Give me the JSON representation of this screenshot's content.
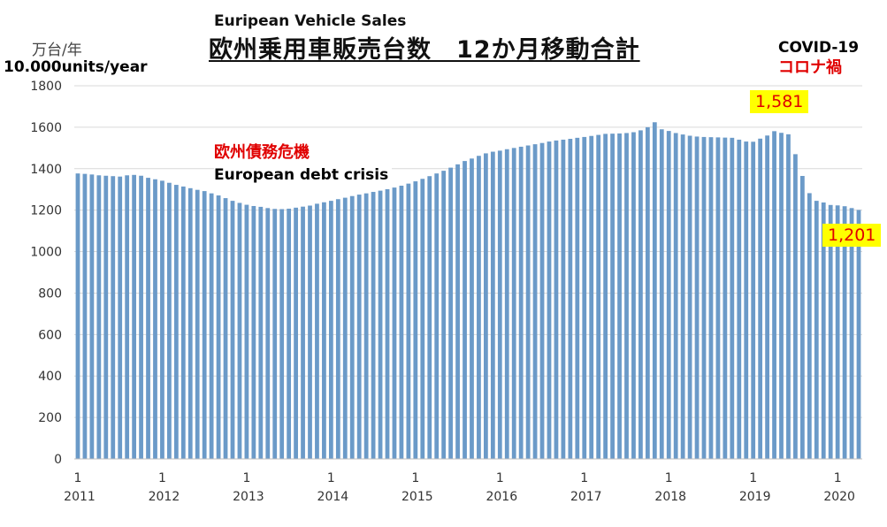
{
  "titles": {
    "english": "Euripean Vehicle Sales",
    "japanese": "欧州乗用車販売台数　12か月移動合計"
  },
  "units": {
    "japanese": "万台/年",
    "english": "10.000units/year"
  },
  "annotations": {
    "covid_en": "COVID-19",
    "covid_jp": "コロナ禍",
    "crisis_jp": "欧州債務危機",
    "crisis_en": "European debt crisis",
    "peak_callout": "1,581",
    "end_callout": "1,201"
  },
  "colors": {
    "bar": "#6b9ac8",
    "gridline": "#d9d9d9",
    "highlight": "#ffff00",
    "annotation_red": "#e00000"
  },
  "chart_data": {
    "type": "bar",
    "ylim": [
      0,
      1800
    ],
    "yticks": [
      "0",
      "200",
      "400",
      "600",
      "800",
      "1000",
      "1200",
      "1400",
      "1600",
      "1800"
    ],
    "grid": true,
    "xtick_months": [
      "1",
      "1",
      "1",
      "1",
      "1",
      "1",
      "1",
      "1",
      "1",
      "1"
    ],
    "xtick_years": [
      "2011",
      "2012",
      "2013",
      "2014",
      "2015",
      "2016",
      "2017",
      "2018",
      "2019",
      "2020"
    ],
    "period": "monthly, Jan 2011 - Dec 2020",
    "values": [
      1377,
      1375,
      1372,
      1368,
      1366,
      1364,
      1362,
      1368,
      1370,
      1366,
      1356,
      1349,
      1342,
      1332,
      1322,
      1314,
      1306,
      1298,
      1292,
      1281,
      1271,
      1258,
      1245,
      1235,
      1226,
      1220,
      1216,
      1210,
      1206,
      1205,
      1207,
      1212,
      1217,
      1222,
      1231,
      1238,
      1245,
      1253,
      1260,
      1268,
      1275,
      1281,
      1288,
      1294,
      1301,
      1309,
      1318,
      1328,
      1339,
      1351,
      1364,
      1377,
      1390,
      1405,
      1421,
      1437,
      1449,
      1462,
      1474,
      1482,
      1487,
      1494,
      1500,
      1506,
      1512,
      1518,
      1524,
      1531,
      1536,
      1540,
      1544,
      1549,
      1553,
      1558,
      1563,
      1568,
      1569,
      1570,
      1572,
      1576,
      1585,
      1600,
      1624,
      1590,
      1582,
      1572,
      1565,
      1559,
      1555,
      1553,
      1552,
      1551,
      1550,
      1549,
      1540,
      1531,
      1530,
      1545,
      1560,
      1581,
      1573,
      1566,
      1470,
      1365,
      1282,
      1245,
      1237,
      1225,
      1223,
      1219,
      1210,
      1201
    ]
  }
}
